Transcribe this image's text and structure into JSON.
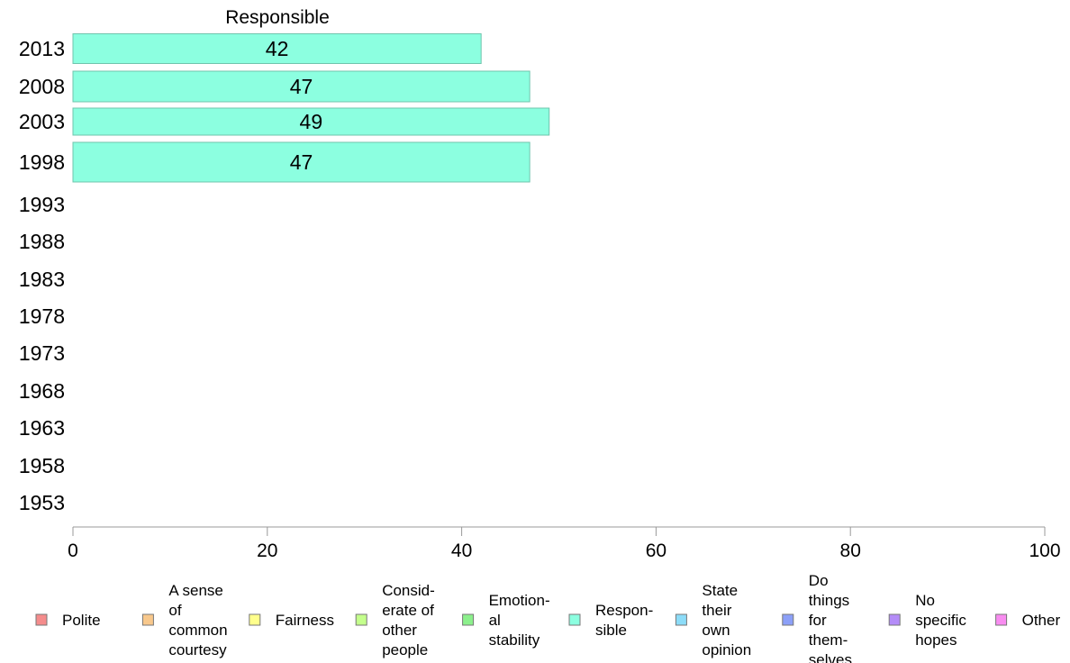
{
  "chart_data": {
    "type": "bar",
    "orientation": "horizontal",
    "title": "Responsible",
    "xlabel": "",
    "ylabel": "",
    "xlim": [
      0,
      100
    ],
    "x_ticks": [
      0,
      20,
      40,
      60,
      80,
      100
    ],
    "categories": [
      "2013",
      "2008",
      "2003",
      "1998",
      "1993",
      "1988",
      "1983",
      "1978",
      "1973",
      "1968",
      "1963",
      "1958",
      "1953"
    ],
    "series": [
      {
        "name": "Respon-sible",
        "color": "#8cffe0",
        "values": [
          42,
          47,
          49,
          47,
          null,
          null,
          null,
          null,
          null,
          null,
          null,
          null,
          null
        ]
      }
    ],
    "grid": false,
    "legend_position": "bottom",
    "legend": [
      {
        "lines": [
          "Polite"
        ],
        "color": "#f58c8c"
      },
      {
        "lines": [
          "A sense",
          "of",
          "common",
          "courtesy"
        ],
        "color": "#f8c88c"
      },
      {
        "lines": [
          "Fairness"
        ],
        "color": "#ffff8c"
      },
      {
        "lines": [
          "Consid-",
          "erate of",
          "other",
          "people"
        ],
        "color": "#c4ff8c"
      },
      {
        "lines": [
          "Emotion-",
          "al",
          "stability"
        ],
        "color": "#8cf08c"
      },
      {
        "lines": [
          "Respon-",
          "sible"
        ],
        "color": "#8cffe0"
      },
      {
        "lines": [
          "State",
          "their",
          "own",
          "opinion"
        ],
        "color": "#8cdcf8"
      },
      {
        "lines": [
          "Do",
          "things",
          "for",
          "them-",
          "selves"
        ],
        "color": "#8ca0f8"
      },
      {
        "lines": [
          "No",
          "specific",
          "hopes"
        ],
        "color": "#b48cf8"
      },
      {
        "lines": [
          "Other"
        ],
        "color": "#f88cf0"
      }
    ]
  }
}
